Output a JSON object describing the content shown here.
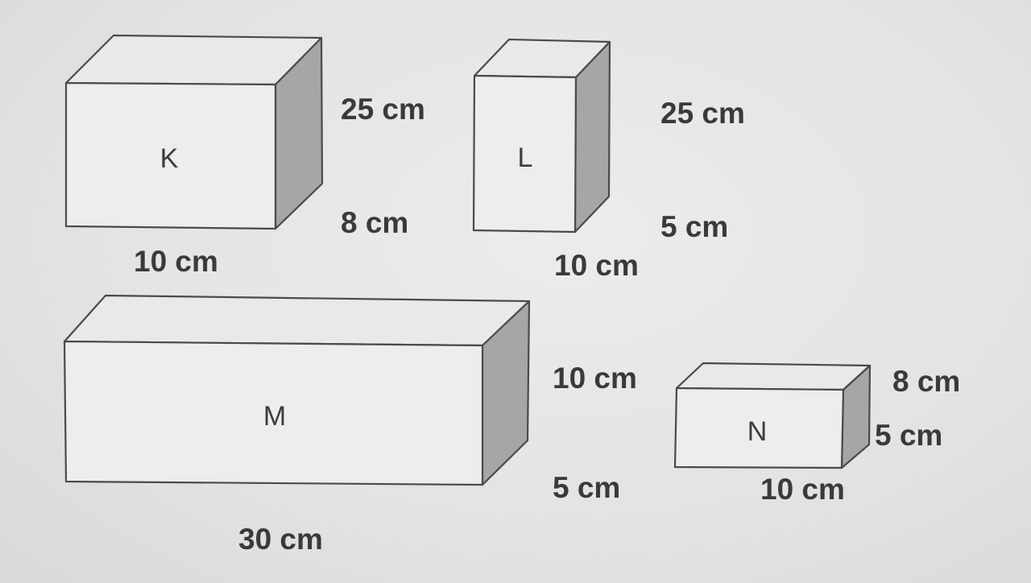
{
  "boxes": {
    "k": {
      "label": "K",
      "dim_top": "25 cm",
      "dim_right": "8 cm",
      "dim_bottom": "10 cm"
    },
    "l": {
      "label": "L",
      "dim_top": "25 cm",
      "dim_right": "5 cm",
      "dim_bottom": "10 cm"
    },
    "m": {
      "label": "M",
      "dim_top": "10 cm",
      "dim_right": "5 cm",
      "dim_bottom": "30 cm"
    },
    "n": {
      "label": "N",
      "dim_top": "8 cm",
      "dim_right": "5 cm",
      "dim_bottom": "10 cm"
    }
  }
}
